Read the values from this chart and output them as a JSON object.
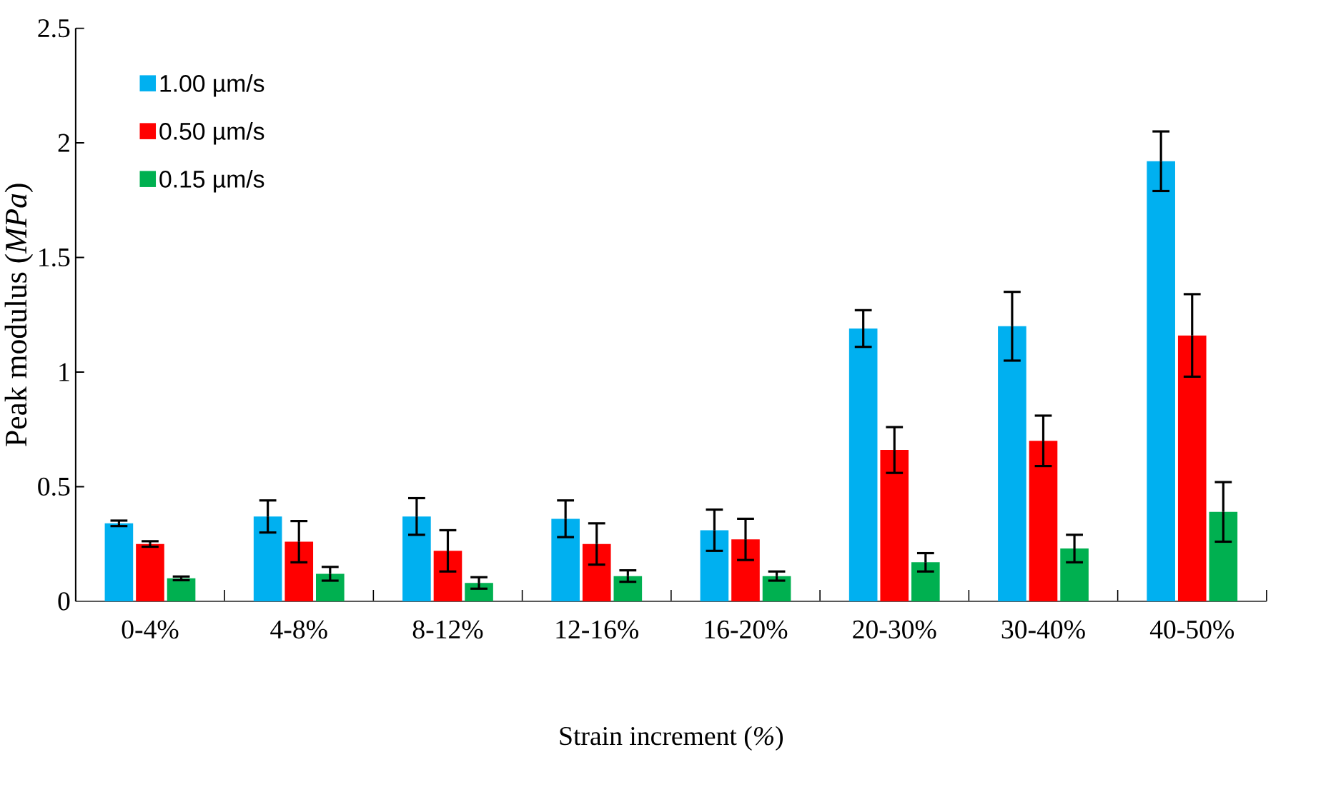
{
  "chart_data": {
    "type": "bar",
    "xlabel": "Strain increment (*%*)",
    "ylabel": "Peak modulus (*MPa*)",
    "categories": [
      "0-4%",
      "4-8%",
      "8-12%",
      "12-16%",
      "16-20%",
      "20-30%",
      "30-40%",
      "40-50%"
    ],
    "series": [
      {
        "name": "1.00 µm/s",
        "color": "#00b0f0",
        "values": [
          0.34,
          0.37,
          0.37,
          0.36,
          0.31,
          1.19,
          1.2,
          1.92
        ],
        "errors": [
          0.012,
          0.07,
          0.08,
          0.08,
          0.09,
          0.08,
          0.15,
          0.13
        ]
      },
      {
        "name": "0.50 µm/s",
        "color": "#ff0000",
        "values": [
          0.25,
          0.26,
          0.22,
          0.25,
          0.27,
          0.66,
          0.7,
          1.16
        ],
        "errors": [
          0.012,
          0.09,
          0.09,
          0.09,
          0.09,
          0.1,
          0.11,
          0.18
        ]
      },
      {
        "name": "0.15 µm/s",
        "color": "#00b050",
        "values": [
          0.1,
          0.12,
          0.08,
          0.11,
          0.11,
          0.17,
          0.23,
          0.39
        ],
        "errors": [
          0.008,
          0.03,
          0.025,
          0.025,
          0.02,
          0.04,
          0.06,
          0.13
        ]
      }
    ],
    "ylim": [
      0,
      2.5
    ],
    "yticks": [
      0,
      0.5,
      1,
      1.5,
      2,
      2.5
    ],
    "legend": "top left"
  }
}
